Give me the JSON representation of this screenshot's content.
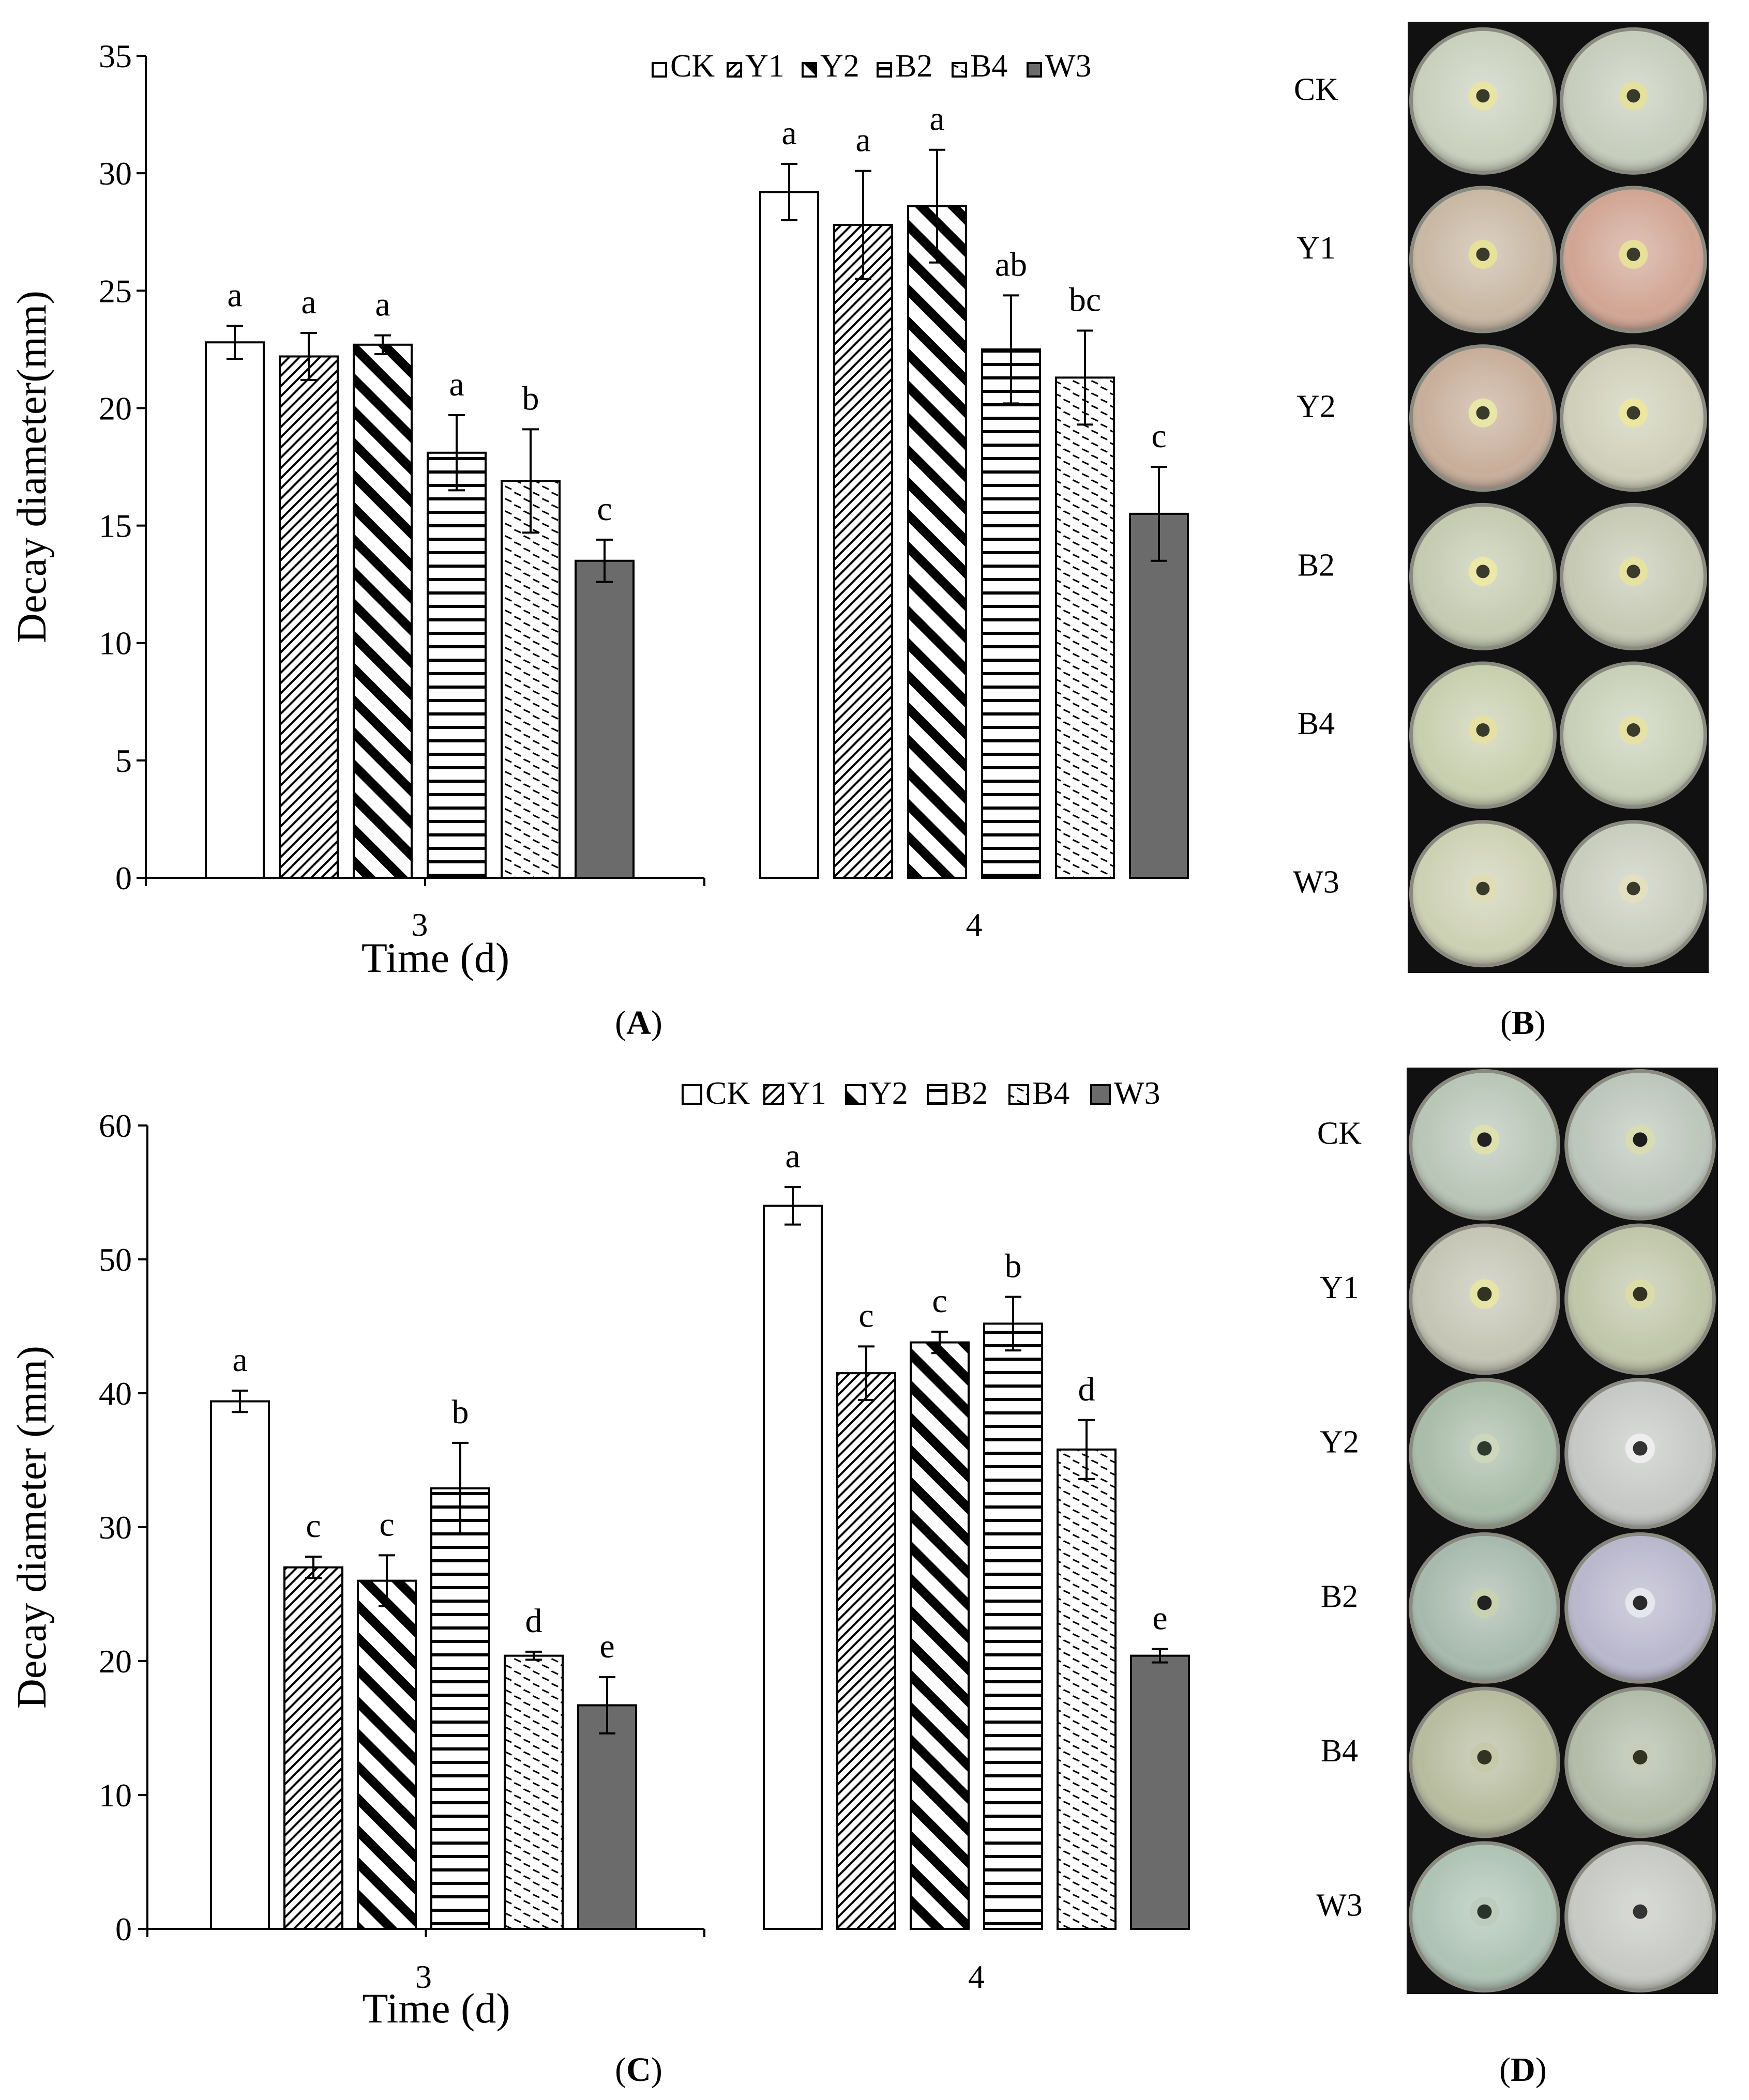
{
  "colors": {
    "axis": "#000000",
    "bar_fill": "#ffffff",
    "w3_fill": "#6b6b6b",
    "plate_bg": "#111111"
  },
  "chart_data": [
    {
      "id": "A",
      "type": "bar",
      "panel_label": {
        "open": "(",
        "letter": "A",
        "close": ")"
      },
      "ylabel": "Decay diameter(mm)",
      "xlabel": "Time (d)",
      "ylim": [
        0,
        35
      ],
      "yticks": [
        0,
        5,
        10,
        15,
        20,
        25,
        30,
        35
      ],
      "categories": [
        "3",
        "4"
      ],
      "legend_position": "top-right",
      "series": [
        {
          "name": "CK",
          "pattern": "empty",
          "values": [
            22.8,
            29.2
          ],
          "errors": [
            0.7,
            1.2
          ],
          "letters": [
            "a",
            "a"
          ]
        },
        {
          "name": "Y1",
          "pattern": "diag-fine",
          "values": [
            22.2,
            27.8
          ],
          "errors": [
            1.0,
            2.3
          ],
          "letters": [
            "a",
            "a"
          ]
        },
        {
          "name": "Y2",
          "pattern": "diag-bold",
          "values": [
            22.7,
            28.6
          ],
          "errors": [
            0.4,
            2.4
          ],
          "letters": [
            "a",
            "a"
          ]
        },
        {
          "name": "B2",
          "pattern": "horizontal",
          "values": [
            18.1,
            22.5
          ],
          "errors": [
            1.6,
            2.3
          ],
          "letters": [
            "a",
            "ab"
          ]
        },
        {
          "name": "B4",
          "pattern": "dashes",
          "values": [
            16.9,
            21.3
          ],
          "errors": [
            2.2,
            2.0
          ],
          "letters": [
            "b",
            "bc"
          ]
        },
        {
          "name": "W3",
          "pattern": "solid",
          "values": [
            13.5,
            15.5
          ],
          "errors": [
            0.9,
            2.0
          ],
          "letters": [
            "c",
            "c"
          ]
        }
      ]
    },
    {
      "id": "C",
      "type": "bar",
      "panel_label": {
        "open": "(",
        "letter": "C",
        "close": ")"
      },
      "ylabel": "Decay diameter (mm)",
      "xlabel": "Time (d)",
      "ylim": [
        0,
        60
      ],
      "yticks": [
        0,
        10,
        20,
        30,
        40,
        50,
        60
      ],
      "categories": [
        "3",
        "4"
      ],
      "legend_position": "top-right",
      "series": [
        {
          "name": "CK",
          "pattern": "empty",
          "values": [
            39.4,
            54.0
          ],
          "errors": [
            0.8,
            1.4
          ],
          "letters": [
            "a",
            "a"
          ]
        },
        {
          "name": "Y1",
          "pattern": "diag-fine",
          "values": [
            27.0,
            41.5
          ],
          "errors": [
            0.8,
            2.0
          ],
          "letters": [
            "c",
            "c"
          ]
        },
        {
          "name": "Y2",
          "pattern": "diag-bold",
          "values": [
            26.0,
            43.8
          ],
          "errors": [
            1.9,
            0.8
          ],
          "letters": [
            "c",
            "c"
          ]
        },
        {
          "name": "B2",
          "pattern": "horizontal",
          "values": [
            32.9,
            45.2
          ],
          "errors": [
            3.4,
            2.0
          ],
          "letters": [
            "b",
            "b"
          ]
        },
        {
          "name": "B4",
          "pattern": "dashes",
          "values": [
            20.4,
            35.8
          ],
          "errors": [
            0.3,
            2.2
          ],
          "letters": [
            "d",
            "d"
          ]
        },
        {
          "name": "W3",
          "pattern": "solid",
          "values": [
            16.7,
            20.4
          ],
          "errors": [
            2.1,
            0.5
          ],
          "letters": [
            "e",
            "e"
          ]
        }
      ]
    }
  ],
  "plates": [
    {
      "id": "B",
      "panel_label": {
        "open": "(",
        "letter": "B",
        "close": ")"
      },
      "rows": [
        {
          "label": "CK",
          "plates": [
            {
              "tint": "#c9d0bd",
              "halo": "#e7e4a6",
              "center": "#3a3a2a"
            },
            {
              "tint": "#c6cdbc",
              "halo": "#e3e0a0",
              "center": "#3a3a2a"
            }
          ]
        },
        {
          "label": "Y1",
          "plates": [
            {
              "tint": "#c8b8a3",
              "halo": "#e6e29a",
              "center": "#3b3b2c"
            },
            {
              "tint": "#d1a594",
              "halo": "#e6e09a",
              "center": "#3b3b2c"
            }
          ]
        },
        {
          "label": "Y2",
          "plates": [
            {
              "tint": "#c8ae9a",
              "halo": "#e8e6a8",
              "center": "#3b3b2c"
            },
            {
              "tint": "#cfcfb9",
              "halo": "#ece6a0",
              "center": "#3b3b2c"
            }
          ]
        },
        {
          "label": "B2",
          "plates": [
            {
              "tint": "#c4cbb0",
              "halo": "#ece9a8",
              "center": "#3b3b2c"
            },
            {
              "tint": "#c6c9b4",
              "halo": "#e5e2a2",
              "center": "#3b3b2c"
            }
          ]
        },
        {
          "label": "B4",
          "plates": [
            {
              "tint": "#c8cfae",
              "halo": "#e5e1a4",
              "center": "#3b3b2c"
            },
            {
              "tint": "#c8d0b8",
              "halo": "#e6e2a6",
              "center": "#3b3b2c"
            }
          ]
        },
        {
          "label": "W3",
          "plates": [
            {
              "tint": "#cdd1b3",
              "halo": "#e0ddb6",
              "center": "#3a3a2a"
            },
            {
              "tint": "#c9cdbd",
              "halo": "#e2e0c0",
              "center": "#3a3a2a"
            }
          ]
        }
      ]
    },
    {
      "id": "D",
      "panel_label": {
        "open": "(",
        "letter": "D",
        "close": ")"
      },
      "rows": [
        {
          "label": "CK",
          "plates": [
            {
              "tint": "#b8c6b6",
              "halo": "#dee0b0",
              "center": "#222222"
            },
            {
              "tint": "#bcc6ba",
              "halo": "#d8dcb0",
              "center": "#1c1c1c"
            }
          ]
        },
        {
          "label": "Y1",
          "plates": [
            {
              "tint": "#c4c5b4",
              "halo": "#e6e4a6",
              "center": "#333322"
            },
            {
              "tint": "#c0c6a8",
              "halo": "#dcdca8",
              "center": "#333322"
            }
          ]
        },
        {
          "label": "Y2",
          "plates": [
            {
              "tint": "#a9bca8",
              "halo": "#cdd7bc",
              "center": "#2f3a2f"
            },
            {
              "tint": "#c6c8c6",
              "halo": "#eeeeee",
              "center": "#333333"
            }
          ]
        },
        {
          "label": "B2",
          "plates": [
            {
              "tint": "#a7b9ad",
              "halo": "#c8d2b0",
              "center": "#222222"
            },
            {
              "tint": "#b9b7cc",
              "halo": "#e6e6ee",
              "center": "#2a2a2a"
            }
          ]
        },
        {
          "label": "B4",
          "plates": [
            {
              "tint": "#b7bc9e",
              "halo": "#c6c9aa",
              "center": "#333322"
            },
            {
              "tint": "#b2bca9",
              "halo": "#c7cdba",
              "center": "#333322"
            }
          ]
        },
        {
          "label": "W3",
          "plates": [
            {
              "tint": "#aec3b4",
              "halo": "#bcccbd",
              "center": "#2a332a"
            },
            {
              "tint": "#c7c9c4",
              "halo": "#d6d6d2",
              "center": "#333333"
            }
          ]
        }
      ]
    }
  ]
}
